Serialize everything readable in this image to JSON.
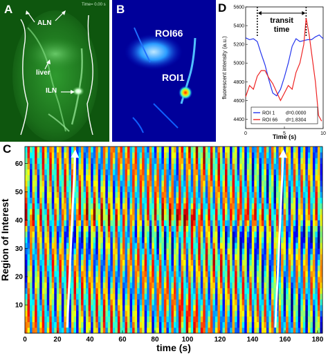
{
  "panel_a": {
    "label": "A",
    "timestamp": "Time= 0.00 s",
    "annotations": [
      "ALN",
      "liver",
      "ILN"
    ]
  },
  "panel_b": {
    "label": "B",
    "annotations": [
      "ROI66",
      "ROI1"
    ]
  },
  "panel_d": {
    "label": "D",
    "chart_data": {
      "type": "line",
      "xlabel": "Time (s)",
      "ylabel": "fluorescent intensity (a.u.)",
      "xlim": [
        0,
        10
      ],
      "ylim": [
        4300,
        5600
      ],
      "xticks": [
        0,
        5,
        10
      ],
      "yticks": [
        4400,
        4600,
        4800,
        5000,
        5200,
        5400,
        5600
      ],
      "annotation": "transit time",
      "transit_markers": [
        1.5,
        7.8
      ],
      "legend_placement": "bottom-center",
      "series": [
        {
          "name": "ROI 1",
          "legend_value": "d=0.0000",
          "color": "#2233ee",
          "x": [
            0,
            0.5,
            1.0,
            1.5,
            2.0,
            2.5,
            3.0,
            3.5,
            4.0,
            4.5,
            5.0,
            5.5,
            6.0,
            6.5,
            7.0,
            7.5,
            8.0,
            8.5,
            9.0,
            9.5,
            10.0
          ],
          "y": [
            5270,
            5250,
            5260,
            5230,
            5100,
            4980,
            4820,
            4680,
            4650,
            4720,
            4850,
            5000,
            5180,
            5260,
            5230,
            5240,
            5250,
            5250,
            5280,
            5300,
            5260
          ]
        },
        {
          "name": "ROI 66",
          "legend_value": "d=1.8304",
          "color": "#ee2222",
          "x": [
            0,
            0.5,
            1.0,
            1.5,
            2.0,
            2.5,
            3.0,
            3.5,
            4.0,
            4.5,
            5.0,
            5.5,
            6.0,
            6.5,
            7.0,
            7.5,
            7.8,
            8.2,
            8.6,
            9.0,
            9.4,
            9.8
          ],
          "y": [
            4640,
            4760,
            4720,
            4860,
            4920,
            4920,
            4840,
            4780,
            4690,
            4600,
            4680,
            4760,
            4720,
            4900,
            5000,
            5200,
            5480,
            5300,
            5050,
            4800,
            4440,
            4380
          ]
        }
      ]
    }
  },
  "panel_c": {
    "label": "C",
    "chart_data": {
      "type": "heatmap",
      "xlabel": "time (s)",
      "ylabel": "Region of Interest",
      "xlim": [
        0,
        183
      ],
      "ylim": [
        0,
        66
      ],
      "xticks": [
        0,
        20,
        40,
        60,
        80,
        100,
        120,
        140,
        160,
        180
      ],
      "yticks": [
        10,
        20,
        30,
        40,
        50,
        60
      ],
      "colormap": "jet",
      "arrows": [
        {
          "x_start": 26,
          "y_start": 2,
          "x_end": 31,
          "y_end": 65
        },
        {
          "x_start": 154,
          "y_start": 2,
          "x_end": 159,
          "y_end": 65
        }
      ]
    }
  }
}
